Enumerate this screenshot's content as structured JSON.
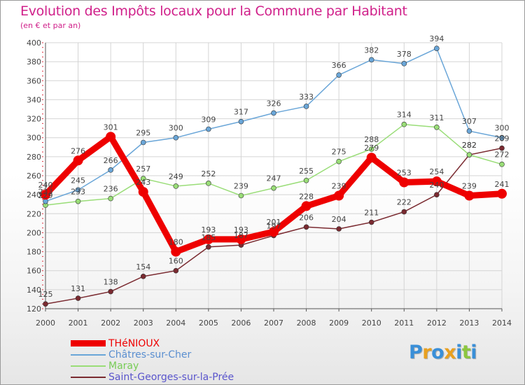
{
  "title": "Evolution des Impôts locaux pour la Commune par Habitant",
  "subtitle": "(en € et par an)",
  "brand": {
    "letters": [
      "P",
      "r",
      "o",
      "x",
      "i",
      "t",
      "i"
    ],
    "colors": [
      "#3a8fd8",
      "#e8a020",
      "#3a8fd8",
      "#e8a020",
      "#3a8fd8",
      "#8cc63f",
      "#3a8fd8"
    ]
  },
  "chart_data": {
    "type": "line",
    "title": "Evolution des Impôts locaux pour la Commune par Habitant",
    "subtitle": "(en € et par an)",
    "xlabel": "",
    "ylabel": "",
    "categories": [
      "2000",
      "2001",
      "2002",
      "2003",
      "2004",
      "2005",
      "2006",
      "2007",
      "2008",
      "2009",
      "2010",
      "2011",
      "2012",
      "2013",
      "2014"
    ],
    "ylim": [
      120,
      400
    ],
    "yticks": [
      "120",
      "140",
      "160",
      "180",
      "200",
      "220",
      "240",
      "260",
      "280",
      "300",
      "320",
      "340",
      "360",
      "380",
      "400"
    ],
    "grid": true,
    "legend_position": "bottom-left",
    "series": [
      {
        "name": "THéNIOUX",
        "color": "#ee0000",
        "emphasis": true,
        "values": [
          240,
          276,
          301,
          243,
          180,
          193,
          193,
          201,
          228,
          239,
          279,
          253,
          254,
          239,
          241
        ],
        "labels": [
          "240",
          "276",
          "301",
          "243",
          "180",
          "193",
          "193",
          "201",
          "228",
          "239",
          "279",
          "253",
          "254",
          "239",
          "241"
        ]
      },
      {
        "name": "Châtres-sur-Cher",
        "color": "#6aa6d8",
        "emphasis": false,
        "values": [
          233,
          245,
          266,
          295,
          300,
          309,
          317,
          326,
          333,
          366,
          382,
          378,
          394,
          307,
          300
        ],
        "labels": [
          "233",
          "245",
          "266",
          "295",
          "300",
          "309",
          "317",
          "326",
          "333",
          "366",
          "382",
          "378",
          "394",
          "307",
          "300"
        ]
      },
      {
        "name": "Maray",
        "color": "#99dd77",
        "emphasis": false,
        "values": [
          229,
          233,
          236,
          257,
          249,
          252,
          239,
          247,
          255,
          275,
          288,
          314,
          311,
          282,
          272
        ],
        "labels": [
          "229",
          "233",
          "236",
          "257",
          "249",
          "252",
          "239",
          "247",
          "255",
          "275",
          "288",
          "314",
          "311",
          "282",
          "272"
        ]
      },
      {
        "name": "Saint-Georges-sur-la-Prée",
        "color": "#7a2a30",
        "emphasis": false,
        "values": [
          125,
          131,
          138,
          154,
          160,
          185,
          187,
          197,
          206,
          204,
          211,
          222,
          240,
          282,
          289
        ],
        "labels": [
          "125",
          "131",
          "138",
          "154",
          "160",
          "185",
          "187",
          "197",
          "206",
          "204",
          "211",
          "222",
          "240",
          "282",
          "289"
        ]
      }
    ]
  }
}
